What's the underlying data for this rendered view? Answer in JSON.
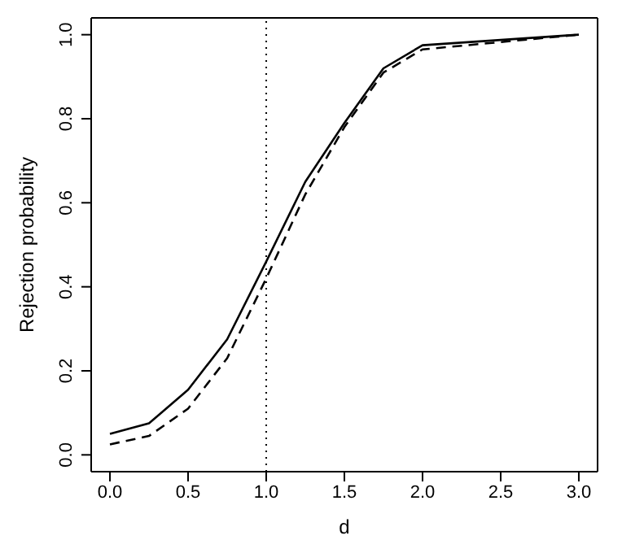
{
  "chart_data": {
    "type": "line",
    "xlabel": "d",
    "ylabel": "Rejection probability",
    "x": [
      0,
      0.25,
      0.5,
      0.75,
      1.0,
      1.25,
      1.5,
      1.75,
      2.0,
      3.0
    ],
    "series": [
      {
        "color": "#000000",
        "line_style": "solid",
        "values": [
          0.05,
          0.075,
          0.155,
          0.275,
          0.46,
          0.65,
          0.79,
          0.92,
          0.975,
          1.0
        ]
      },
      {
        "color": "#000000",
        "line_style": "dashed",
        "values": [
          0.025,
          0.045,
          0.11,
          0.23,
          0.42,
          0.62,
          0.78,
          0.91,
          0.965,
          1.0
        ]
      }
    ],
    "xlim": [
      -0.12,
      3.12
    ],
    "ylim": [
      -0.04,
      1.04
    ],
    "xticks": [
      {
        "value": 0,
        "label": "0.0"
      },
      {
        "value": 0.5,
        "label": "0.5"
      },
      {
        "value": 1,
        "label": "1.0"
      },
      {
        "value": 1.5,
        "label": "1.5"
      },
      {
        "value": 2,
        "label": "2.0"
      },
      {
        "value": 2.5,
        "label": "2.5"
      },
      {
        "value": 3,
        "label": "3.0"
      }
    ],
    "yticks": [
      {
        "value": 0,
        "label": "0.0"
      },
      {
        "value": 0.2,
        "label": "0.2"
      },
      {
        "value": 0.4,
        "label": "0.4"
      },
      {
        "value": 0.6,
        "label": "0.6"
      },
      {
        "value": 0.8,
        "label": "0.8"
      },
      {
        "value": 1,
        "label": "1.0"
      }
    ],
    "ref_lines": [
      {
        "axis": "x",
        "value": 1,
        "line_style": "dotted",
        "color": "#000000"
      }
    ],
    "grid": false,
    "legend": false,
    "marker": "none"
  }
}
